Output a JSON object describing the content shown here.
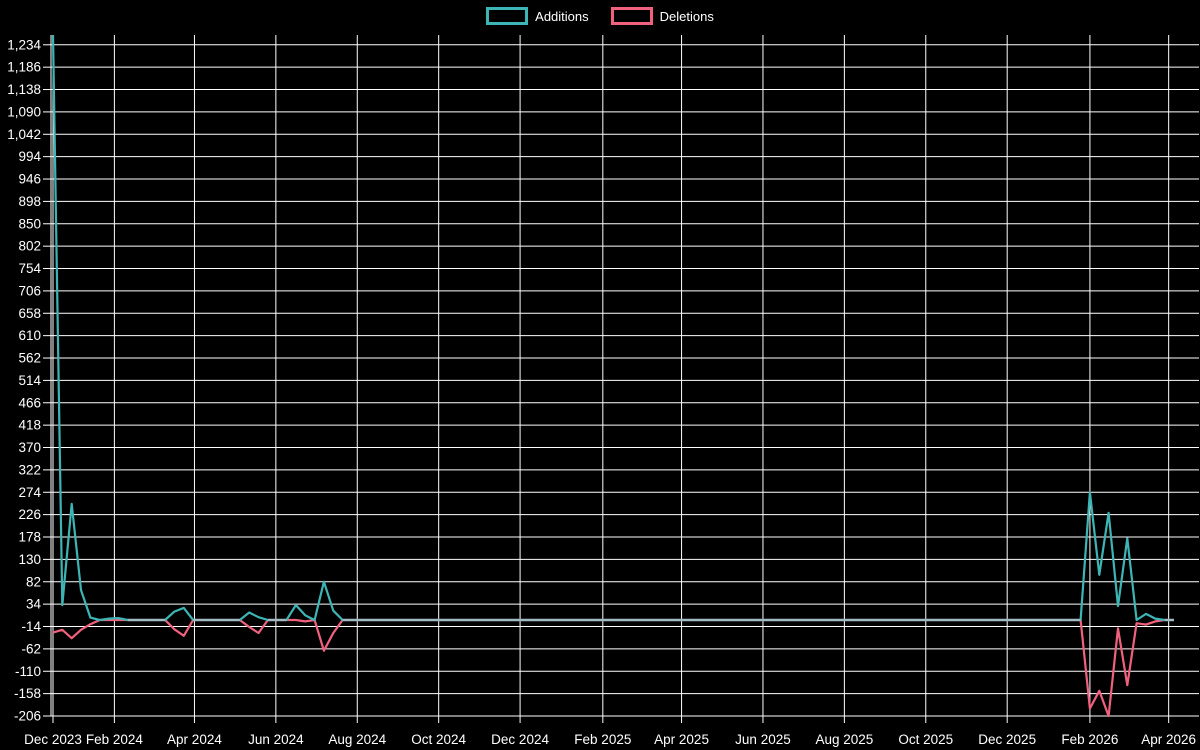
{
  "legend": {
    "items": [
      {
        "label": "Additions",
        "color": "#3db5b5"
      },
      {
        "label": "Deletions",
        "color": "#f0617e"
      }
    ]
  },
  "colors": {
    "background": "#000000",
    "grid": "#ffffff",
    "text": "#ffffff",
    "additions": "#3db5b5",
    "deletions": "#f0617e",
    "overlap_baseline": "#a2bac2"
  },
  "chart_data": {
    "type": "line",
    "title": "",
    "xlabel": "",
    "ylabel": "",
    "legend_position": "top-center",
    "grid": true,
    "x_axis": {
      "ticks": [
        {
          "label": "Dec 2023",
          "date": "2023-12-17"
        },
        {
          "label": "Feb 2024",
          "date": "2024-02-01"
        },
        {
          "label": "Apr 2024",
          "date": "2024-04-01"
        },
        {
          "label": "Jun 2024",
          "date": "2024-06-01"
        },
        {
          "label": "Aug 2024",
          "date": "2024-08-01"
        },
        {
          "label": "Oct 2024",
          "date": "2024-10-01"
        },
        {
          "label": "Dec 2024",
          "date": "2024-12-01"
        },
        {
          "label": "Feb 2025",
          "date": "2025-02-01"
        },
        {
          "label": "Apr 2025",
          "date": "2025-04-01"
        },
        {
          "label": "Jun 2025",
          "date": "2025-06-01"
        },
        {
          "label": "Aug 2025",
          "date": "2025-08-01"
        },
        {
          "label": "Oct 2025",
          "date": "2025-10-01"
        },
        {
          "label": "Dec 2025",
          "date": "2025-12-01"
        },
        {
          "label": "Feb 2026",
          "date": "2026-02-01"
        },
        {
          "label": "Apr 2026",
          "date": "2026-04-01"
        }
      ]
    },
    "y_axis": {
      "ylim": [
        -206,
        1255
      ],
      "tick_step": 48,
      "tick_values": [
        1234,
        1186,
        1138,
        1090,
        1042,
        994,
        946,
        898,
        850,
        802,
        754,
        706,
        658,
        610,
        562,
        514,
        466,
        418,
        370,
        322,
        274,
        226,
        178,
        130,
        82,
        34,
        -14,
        -62,
        -110,
        -158,
        -206
      ],
      "tick_labels": [
        "1,234",
        "1,186",
        "1,138",
        "1,090",
        "1,042",
        "994",
        "946",
        "898",
        "850",
        "802",
        "754",
        "706",
        "658",
        "610",
        "562",
        "514",
        "466",
        "418",
        "370",
        "322",
        "274",
        "226",
        "178",
        "130",
        "82",
        "34",
        "-14",
        "-62",
        "-110",
        "-158",
        "-206"
      ]
    },
    "sampling": "weekly",
    "start_date": "2023-12-17",
    "end_date": "2026-04-05",
    "week_count": 121,
    "default_value": 0,
    "series": [
      {
        "name": "Additions",
        "color": "#3db5b5",
        "weekly_points_nonzero": {
          "2023-12-17": 1255,
          "2023-12-24": 32,
          "2023-12-31": 249,
          "2024-01-07": 64,
          "2024-01-14": 5,
          "2024-01-28": 3,
          "2024-02-04": 4,
          "2024-03-17": 18,
          "2024-03-24": 26,
          "2024-05-12": 16,
          "2024-05-19": 6,
          "2024-06-16": 32,
          "2024-06-23": 10,
          "2024-07-07": 82,
          "2024-07-14": 20,
          "2026-02-01": 274,
          "2026-02-08": 97,
          "2026-02-15": 230,
          "2026-02-22": 30,
          "2026-03-01": 175,
          "2026-03-15": 13,
          "2026-03-22": 3
        }
      },
      {
        "name": "Deletions",
        "color": "#f0617e",
        "weekly_points_nonzero": {
          "2023-12-17": -27,
          "2023-12-24": -21,
          "2023-12-31": -39,
          "2024-01-07": -21,
          "2024-01-14": -9,
          "2024-03-17": -20,
          "2024-03-24": -34,
          "2024-05-12": -15,
          "2024-05-19": -28,
          "2024-06-23": -3,
          "2024-07-07": -66,
          "2024-07-14": -28,
          "2026-02-01": -190,
          "2026-02-08": -152,
          "2026-02-15": -206,
          "2026-02-22": -18,
          "2026-03-01": -140,
          "2026-03-08": -7,
          "2026-03-15": -10,
          "2026-03-22": -3
        }
      }
    ]
  }
}
